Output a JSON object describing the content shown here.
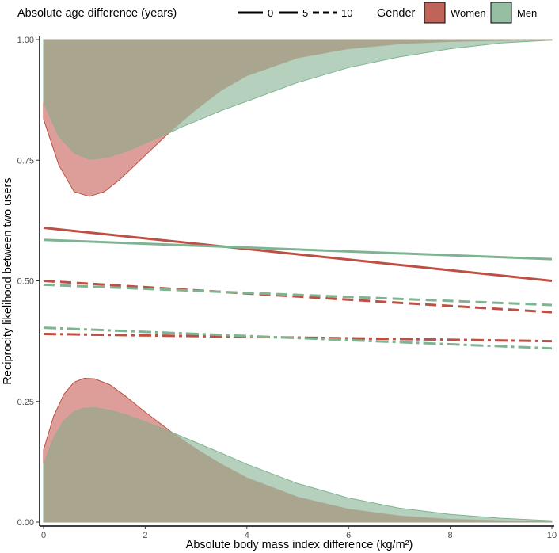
{
  "chart_data": {
    "type": "line",
    "xlabel": "Absolute body mass index difference (kg/m²)",
    "ylabel": "Reciprocity likelihood between two users",
    "xlim": [
      0,
      10
    ],
    "ylim": [
      0,
      1
    ],
    "x_ticks": [
      0,
      2,
      4,
      6,
      8,
      10
    ],
    "x_tick_labels": [
      "0",
      "2",
      "4",
      "6",
      "8",
      "10"
    ],
    "y_ticks": [
      0,
      0.25,
      0.5,
      0.75,
      1.0
    ],
    "y_tick_labels": [
      "0.00",
      "0.25",
      "0.50",
      "0.75",
      "1.00"
    ],
    "legend": {
      "position": "top",
      "linetype_title": "Absolute age difference (years)",
      "linetype_items": [
        {
          "label": "0",
          "dash": "solid"
        },
        {
          "label": "5",
          "dash": "dashed"
        },
        {
          "label": "10",
          "dash": "dotdash"
        }
      ],
      "fill_title": "Gender",
      "fill_items": [
        {
          "label": "Women",
          "color": "#c0645a"
        },
        {
          "label": "Men",
          "color": "#96bea3"
        }
      ]
    },
    "colors": {
      "women_line": "#bd4f43",
      "men_line": "#7fb392",
      "women_fill": "#d78c87",
      "men_fill": "#a8c9b2",
      "overlap_fill": "#a9a58e"
    },
    "series": [
      {
        "name": "Women, age diff 0",
        "gender": "Women",
        "age_diff": "0",
        "x": [
          0,
          10
        ],
        "y": [
          0.61,
          0.5
        ]
      },
      {
        "name": "Men, age diff 0",
        "gender": "Men",
        "age_diff": "0",
        "x": [
          0,
          10
        ],
        "y": [
          0.585,
          0.545
        ]
      },
      {
        "name": "Women, age diff 5",
        "gender": "Women",
        "age_diff": "5",
        "x": [
          0,
          10
        ],
        "y": [
          0.5,
          0.435
        ]
      },
      {
        "name": "Men, age diff 5",
        "gender": "Men",
        "age_diff": "5",
        "x": [
          0,
          10
        ],
        "y": [
          0.492,
          0.45
        ]
      },
      {
        "name": "Women, age diff 10",
        "gender": "Women",
        "age_diff": "10",
        "x": [
          0,
          10
        ],
        "y": [
          0.39,
          0.375
        ]
      },
      {
        "name": "Men, age diff 10",
        "gender": "Men",
        "age_diff": "10",
        "x": [
          0,
          10
        ],
        "y": [
          0.403,
          0.36
        ]
      }
    ],
    "distributions": [
      {
        "name": "Women upper density",
        "gender": "Women",
        "baseline": 1.0,
        "x": [
          0,
          0.3,
          0.6,
          0.9,
          1.2,
          1.5,
          1.8,
          2.1,
          2.4,
          2.7,
          3.0,
          3.5,
          4.0,
          5.0,
          6.0,
          7.0,
          8.0,
          9.0,
          10.0
        ],
        "y": [
          0.835,
          0.74,
          0.685,
          0.675,
          0.685,
          0.71,
          0.74,
          0.77,
          0.8,
          0.828,
          0.855,
          0.895,
          0.925,
          0.962,
          0.981,
          0.991,
          0.996,
          0.998,
          0.999
        ]
      },
      {
        "name": "Men upper density",
        "gender": "Men",
        "baseline": 1.0,
        "x": [
          0,
          0.3,
          0.6,
          0.9,
          1.2,
          1.5,
          1.8,
          2.1,
          2.4,
          2.7,
          3.0,
          3.5,
          4.0,
          5.0,
          6.0,
          7.0,
          8.0,
          9.0,
          10.0
        ],
        "y": [
          0.87,
          0.8,
          0.765,
          0.752,
          0.755,
          0.764,
          0.776,
          0.79,
          0.803,
          0.818,
          0.831,
          0.853,
          0.872,
          0.911,
          0.942,
          0.964,
          0.981,
          0.993,
          0.999
        ]
      },
      {
        "name": "Women lower density",
        "gender": "Women",
        "baseline": 0.0,
        "x": [
          0,
          0.2,
          0.4,
          0.6,
          0.8,
          1.0,
          1.3,
          1.6,
          2.0,
          2.5,
          3.0,
          3.5,
          4.0,
          5.0,
          6.0,
          7.0,
          8.0,
          9.0,
          10.0
        ],
        "y": [
          0.15,
          0.22,
          0.265,
          0.29,
          0.298,
          0.297,
          0.285,
          0.262,
          0.228,
          0.188,
          0.152,
          0.12,
          0.092,
          0.052,
          0.027,
          0.013,
          0.006,
          0.003,
          0.001
        ]
      },
      {
        "name": "Men lower density",
        "gender": "Men",
        "baseline": 0.0,
        "x": [
          0,
          0.2,
          0.4,
          0.6,
          0.8,
          1.0,
          1.3,
          1.6,
          2.0,
          2.5,
          3.0,
          3.5,
          4.0,
          5.0,
          6.0,
          7.0,
          8.0,
          9.0,
          10.0
        ],
        "y": [
          0.12,
          0.175,
          0.21,
          0.229,
          0.236,
          0.237,
          0.232,
          0.223,
          0.208,
          0.187,
          0.165,
          0.143,
          0.12,
          0.08,
          0.05,
          0.029,
          0.016,
          0.008,
          0.003
        ]
      }
    ]
  }
}
